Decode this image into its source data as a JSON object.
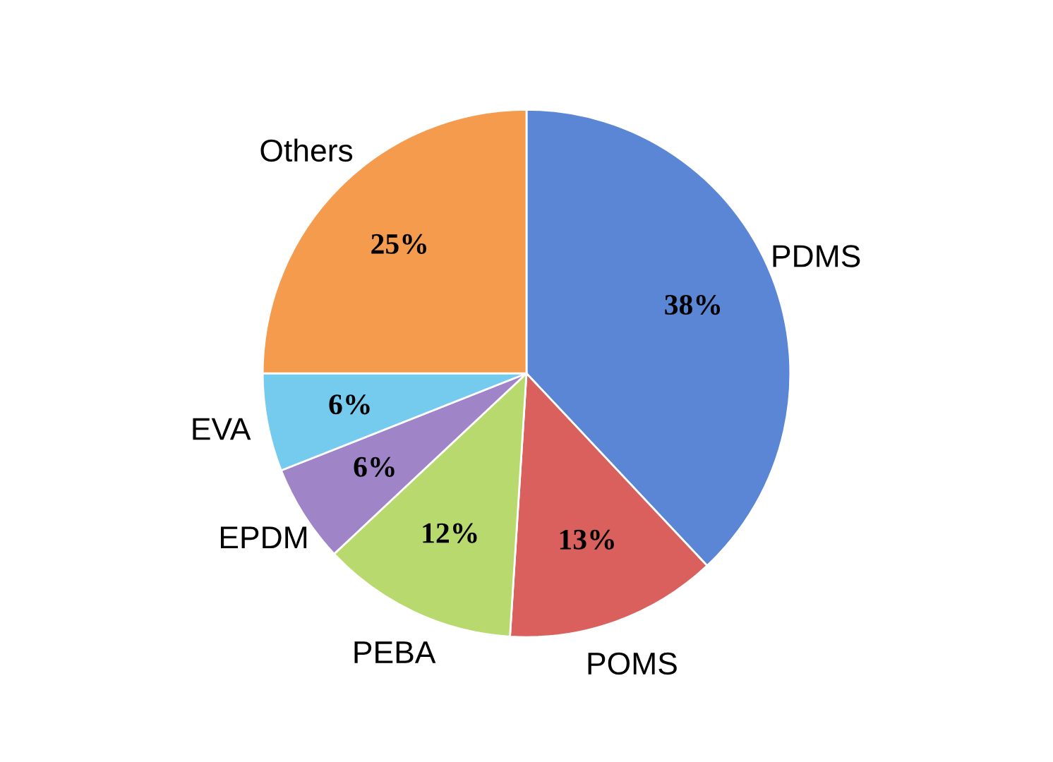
{
  "chart_data": {
    "type": "pie",
    "categories": [
      "PDMS",
      "POMS",
      "PEBA",
      "EPDM",
      "EVA",
      "Others"
    ],
    "values": [
      38,
      13,
      12,
      6,
      6,
      25
    ],
    "colors": [
      "#5b86d6",
      "#d9605c",
      "#b8d96e",
      "#a084c8",
      "#74cbee",
      "#f59b4e"
    ],
    "value_labels": [
      "38%",
      "13%",
      "12%",
      "6%",
      "6%",
      "25%"
    ],
    "legend": false
  }
}
